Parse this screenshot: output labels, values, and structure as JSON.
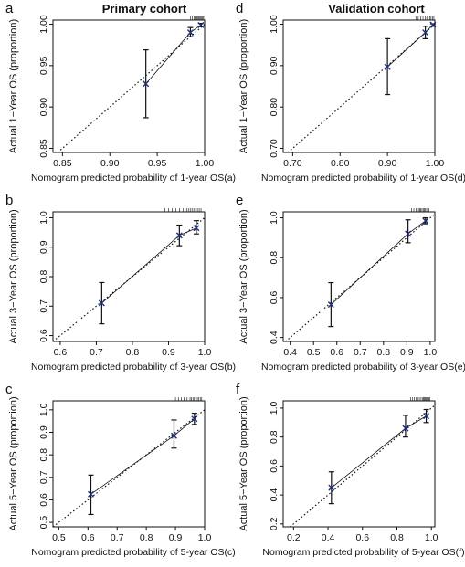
{
  "titles": {
    "left": "Primary cohort",
    "right": "Validation cohort"
  },
  "colors": {
    "axis": "#111111",
    "point": "#1f2f7a",
    "errorbar": "#111111",
    "ideal": "#111111",
    "fit": "#111111"
  },
  "chart_data": [
    {
      "panel": "a",
      "type": "scatter",
      "xlabel": "Nomogram predicted probability of 1-year OS(a)",
      "ylabel": "Actual 1−Year OS (proportion)",
      "xlim": [
        0.84,
        1.0
      ],
      "ylim": [
        0.845,
        1.005
      ],
      "xticks": [
        "0.85",
        "0.90",
        "0.95",
        "1.00"
      ],
      "xtick_values": [
        0.85,
        0.9,
        0.95,
        1.0
      ],
      "yticks": [
        "0.85",
        "0.90",
        "0.95",
        "1.00"
      ],
      "ytick_values": [
        0.85,
        0.9,
        0.95,
        1.0
      ],
      "points": [
        {
          "x": 0.938,
          "y": 0.928,
          "lo": 0.887,
          "hi": 0.969
        },
        {
          "x": 0.985,
          "y": 0.99,
          "lo": 0.985,
          "hi": 0.996
        },
        {
          "x": 0.996,
          "y": 0.999,
          "lo": 0.997,
          "hi": 1.001
        }
      ],
      "rug": [
        0.985,
        0.987,
        0.989,
        0.99,
        0.991,
        0.992,
        0.993,
        0.994,
        0.995,
        0.996,
        0.997,
        0.998,
        0.999
      ]
    },
    {
      "panel": "d",
      "type": "scatter",
      "xlabel": "Nomogram predicted probability of 1-year OS(d)",
      "ylabel": "Actual 1−Year OS (proportion)",
      "xlim": [
        0.68,
        1.0
      ],
      "ylim": [
        0.69,
        1.01
      ],
      "xticks": [
        "0.70",
        "0.80",
        "0.90",
        "1.00"
      ],
      "xtick_values": [
        0.7,
        0.8,
        0.9,
        1.0
      ],
      "yticks": [
        "0.70",
        "0.80",
        "0.90",
        "1.00"
      ],
      "ytick_values": [
        0.7,
        0.8,
        0.9,
        1.0
      ],
      "points": [
        {
          "x": 0.9,
          "y": 0.897,
          "lo": 0.83,
          "hi": 0.965
        },
        {
          "x": 0.98,
          "y": 0.98,
          "lo": 0.965,
          "hi": 0.995
        },
        {
          "x": 0.996,
          "y": 0.999,
          "lo": 0.995,
          "hi": 1.001
        }
      ],
      "rug": [
        0.96,
        0.965,
        0.97,
        0.975,
        0.98,
        0.983,
        0.986,
        0.989,
        0.992,
        0.995,
        0.998
      ]
    },
    {
      "panel": "b",
      "type": "scatter",
      "xlabel": "Nomogram predicted probability of 3-year OS(b)",
      "ylabel": "Actual 3−Year OS (proportion)",
      "xlim": [
        0.58,
        1.0
      ],
      "ylim": [
        0.58,
        1.02
      ],
      "xticks": [
        "0.6",
        "0.7",
        "0.8",
        "0.9",
        "1.0"
      ],
      "xtick_values": [
        0.6,
        0.7,
        0.8,
        0.9,
        1.0
      ],
      "yticks": [
        "0.6",
        "0.7",
        "0.8",
        "0.9",
        "1.0"
      ],
      "ytick_values": [
        0.6,
        0.7,
        0.8,
        0.9,
        1.0
      ],
      "points": [
        {
          "x": 0.715,
          "y": 0.71,
          "lo": 0.64,
          "hi": 0.78
        },
        {
          "x": 0.93,
          "y": 0.94,
          "lo": 0.905,
          "hi": 0.975
        },
        {
          "x": 0.977,
          "y": 0.965,
          "lo": 0.945,
          "hi": 0.99
        }
      ],
      "rug": [
        0.89,
        0.9,
        0.91,
        0.92,
        0.93,
        0.94,
        0.95,
        0.955,
        0.96,
        0.965,
        0.97,
        0.975,
        0.98,
        0.985,
        0.99
      ]
    },
    {
      "panel": "e",
      "type": "scatter",
      "xlabel": "Nomogram predicted probability of 3-year OS(e)",
      "ylabel": "Actual 3−Year OS (proportion)",
      "xlim": [
        0.37,
        1.02
      ],
      "ylim": [
        0.38,
        1.03
      ],
      "xticks": [
        "0.4",
        "0.5",
        "0.6",
        "0.7",
        "0.8",
        "0.9",
        "1.0"
      ],
      "xtick_values": [
        0.4,
        0.5,
        0.6,
        0.7,
        0.8,
        0.9,
        1.0
      ],
      "yticks": [
        "0.4",
        "0.6",
        "0.8",
        "1.0"
      ],
      "ytick_values": [
        0.4,
        0.6,
        0.8,
        1.0
      ],
      "points": [
        {
          "x": 0.575,
          "y": 0.565,
          "lo": 0.455,
          "hi": 0.675
        },
        {
          "x": 0.905,
          "y": 0.92,
          "lo": 0.875,
          "hi": 0.99
        },
        {
          "x": 0.98,
          "y": 0.985,
          "lo": 0.97,
          "hi": 1.0
        }
      ],
      "rug": [
        0.92,
        0.93,
        0.94,
        0.95,
        0.955,
        0.96,
        0.965,
        0.97,
        0.975,
        0.98,
        0.985,
        0.99,
        0.995
      ]
    },
    {
      "panel": "c",
      "type": "scatter",
      "xlabel": "Nomogram predicted probability of 5-year OS(c)",
      "ylabel": "Actual 5−Year OS (proportion)",
      "xlim": [
        0.48,
        1.0
      ],
      "ylim": [
        0.48,
        1.04
      ],
      "xticks": [
        "0.5",
        "0.6",
        "0.7",
        "0.8",
        "0.9",
        "1.0"
      ],
      "xtick_values": [
        0.5,
        0.6,
        0.7,
        0.8,
        0.9,
        1.0
      ],
      "yticks": [
        "0.5",
        "0.6",
        "0.7",
        "0.8",
        "0.9",
        "1.0"
      ],
      "ytick_values": [
        0.5,
        0.6,
        0.7,
        0.8,
        0.9,
        1.0
      ],
      "points": [
        {
          "x": 0.61,
          "y": 0.625,
          "lo": 0.535,
          "hi": 0.71
        },
        {
          "x": 0.895,
          "y": 0.885,
          "lo": 0.83,
          "hi": 0.955
        },
        {
          "x": 0.965,
          "y": 0.96,
          "lo": 0.935,
          "hi": 0.985
        }
      ],
      "rug": [
        0.9,
        0.91,
        0.92,
        0.93,
        0.94,
        0.95,
        0.955,
        0.96,
        0.965,
        0.97,
        0.975,
        0.98,
        0.985,
        0.99
      ]
    },
    {
      "panel": "f",
      "type": "scatter",
      "xlabel": "Nomogram predicted probability of 5-year OS(f)",
      "ylabel": "Actual 5−Year OS (proportion)",
      "xlim": [
        0.14,
        1.02
      ],
      "ylim": [
        0.18,
        1.05
      ],
      "xticks": [
        "0.2",
        "0.4",
        "0.6",
        "0.8",
        "1.0"
      ],
      "xtick_values": [
        0.2,
        0.4,
        0.6,
        0.8,
        1.0
      ],
      "yticks": [
        "0.2",
        "0.4",
        "0.6",
        "0.8",
        "1.0"
      ],
      "ytick_values": [
        0.2,
        0.4,
        0.6,
        0.8,
        1.0
      ],
      "points": [
        {
          "x": 0.42,
          "y": 0.45,
          "lo": 0.34,
          "hi": 0.56
        },
        {
          "x": 0.85,
          "y": 0.86,
          "lo": 0.8,
          "hi": 0.95
        },
        {
          "x": 0.97,
          "y": 0.945,
          "lo": 0.9,
          "hi": 0.99
        }
      ],
      "rug": [
        0.88,
        0.89,
        0.9,
        0.91,
        0.92,
        0.93,
        0.94,
        0.95,
        0.955,
        0.96,
        0.965,
        0.97,
        0.975,
        0.98,
        0.985,
        0.99
      ]
    }
  ]
}
